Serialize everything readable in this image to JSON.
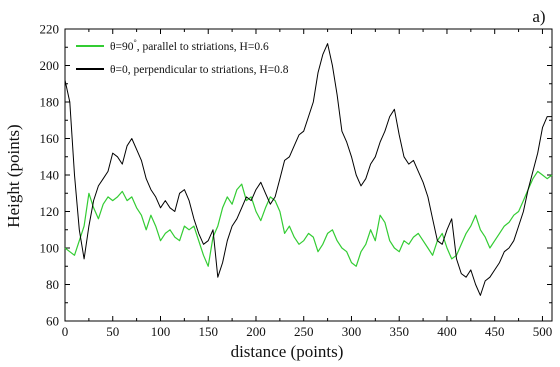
{
  "panel_label": "a)",
  "chart_data": {
    "type": "line",
    "xlabel": "distance (points)",
    "ylabel": "Height (points)",
    "xlim": [
      0,
      510
    ],
    "ylim": [
      60,
      220
    ],
    "xticks": [
      0,
      50,
      100,
      150,
      200,
      250,
      300,
      350,
      400,
      450,
      500
    ],
    "yticks": [
      60,
      80,
      100,
      120,
      140,
      160,
      180,
      200,
      220
    ],
    "grid": false,
    "legend_position": "top-left",
    "series": [
      {
        "name": "θ=90, parallel to striations, H=0.6",
        "label_prefix": "θ=90",
        "label_superscript": "°",
        "label_suffix": ", parallel to striations, H=0.6",
        "color": "#33cc33",
        "x": [
          0,
          5,
          10,
          15,
          20,
          25,
          30,
          35,
          40,
          45,
          50,
          55,
          60,
          65,
          70,
          75,
          80,
          85,
          90,
          95,
          100,
          105,
          110,
          115,
          120,
          125,
          130,
          135,
          140,
          145,
          150,
          155,
          160,
          165,
          170,
          175,
          180,
          185,
          190,
          195,
          200,
          205,
          210,
          215,
          220,
          225,
          230,
          235,
          240,
          245,
          250,
          255,
          260,
          265,
          270,
          275,
          280,
          285,
          290,
          295,
          300,
          305,
          310,
          315,
          320,
          325,
          330,
          335,
          340,
          345,
          350,
          355,
          360,
          365,
          370,
          375,
          380,
          385,
          390,
          395,
          400,
          405,
          410,
          415,
          420,
          425,
          430,
          435,
          440,
          445,
          450,
          455,
          460,
          465,
          470,
          475,
          480,
          485,
          490,
          495,
          500,
          505,
          510
        ],
        "values": [
          100,
          98,
          96,
          104,
          112,
          130,
          122,
          116,
          124,
          128,
          126,
          128,
          131,
          126,
          128,
          122,
          118,
          110,
          118,
          112,
          104,
          108,
          110,
          106,
          104,
          112,
          110,
          112,
          104,
          96,
          90,
          106,
          112,
          122,
          128,
          124,
          132,
          135,
          126,
          128,
          120,
          115,
          122,
          128,
          126,
          120,
          108,
          112,
          106,
          102,
          104,
          108,
          106,
          98,
          102,
          108,
          110,
          104,
          100,
          98,
          92,
          90,
          98,
          102,
          110,
          104,
          118,
          114,
          104,
          100,
          98,
          104,
          102,
          106,
          108,
          104,
          100,
          96,
          104,
          108,
          100,
          94,
          96,
          102,
          108,
          112,
          118,
          110,
          106,
          100,
          104,
          108,
          112,
          114,
          118,
          120,
          126,
          132,
          138,
          142,
          140,
          138,
          140
        ]
      },
      {
        "name": "θ=0, perpendicular to striations, H=0.8",
        "label_prefix": "θ=0",
        "label_superscript": "",
        "label_suffix": ", perpendicular to striations, H=0.8",
        "color": "#000000",
        "x": [
          0,
          5,
          10,
          15,
          20,
          25,
          30,
          35,
          40,
          45,
          50,
          55,
          60,
          65,
          70,
          75,
          80,
          85,
          90,
          95,
          100,
          105,
          110,
          115,
          120,
          125,
          130,
          135,
          140,
          145,
          150,
          155,
          160,
          165,
          170,
          175,
          180,
          185,
          190,
          195,
          200,
          205,
          210,
          215,
          220,
          225,
          230,
          235,
          240,
          245,
          250,
          255,
          260,
          265,
          270,
          275,
          280,
          285,
          290,
          295,
          300,
          305,
          310,
          315,
          320,
          325,
          330,
          335,
          340,
          345,
          350,
          355,
          360,
          365,
          370,
          375,
          380,
          385,
          390,
          395,
          400,
          405,
          410,
          415,
          420,
          425,
          430,
          435,
          440,
          445,
          450,
          455,
          460,
          465,
          470,
          475,
          480,
          485,
          490,
          495,
          500,
          505,
          510
        ],
        "values": [
          192,
          180,
          140,
          110,
          94,
          112,
          126,
          134,
          138,
          142,
          152,
          150,
          146,
          156,
          160,
          154,
          148,
          138,
          132,
          128,
          122,
          126,
          122,
          120,
          130,
          132,
          126,
          116,
          108,
          102,
          104,
          110,
          84,
          92,
          104,
          112,
          116,
          122,
          128,
          126,
          132,
          136,
          130,
          124,
          128,
          138,
          148,
          150,
          156,
          162,
          164,
          172,
          180,
          196,
          206,
          212,
          200,
          184,
          164,
          158,
          150,
          140,
          134,
          138,
          146,
          150,
          158,
          164,
          172,
          176,
          162,
          150,
          146,
          148,
          142,
          136,
          128,
          116,
          104,
          102,
          110,
          116,
          94,
          86,
          84,
          88,
          80,
          74,
          82,
          84,
          88,
          92,
          98,
          100,
          104,
          112,
          120,
          132,
          142,
          152,
          166,
          172,
          172
        ]
      }
    ]
  }
}
